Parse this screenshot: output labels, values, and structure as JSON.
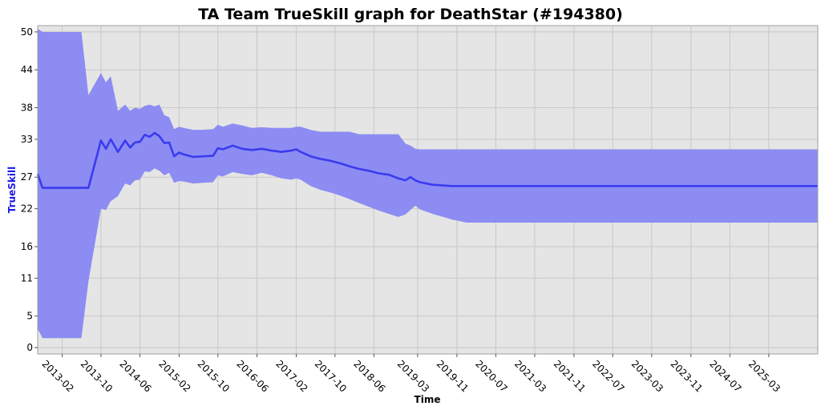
{
  "chart_data": {
    "type": "line",
    "title": "TA Team TrueSkill graph for DeathStar (#194380)",
    "xlabel": "Time",
    "ylabel": "TrueSkill",
    "x_ticks": [
      "2013-02",
      "2013-10",
      "2014-06",
      "2015-02",
      "2015-10",
      "2016-06",
      "2017-02",
      "2017-10",
      "2018-06",
      "2019-03",
      "2019-11",
      "2020-07",
      "2021-03",
      "2021-11",
      "2022-07",
      "2023-03",
      "2023-11",
      "2024-07",
      "2025-03"
    ],
    "y_ticks": [
      0,
      5,
      11,
      16,
      22,
      27,
      33,
      38,
      44,
      50
    ],
    "x_range": [
      "2012-09",
      "2026-01"
    ],
    "ylim": [
      -1,
      51
    ],
    "grid": true,
    "legend": "none",
    "colors": {
      "line": "#3b3bf0",
      "band": "#8c8cf3",
      "plot_bg": "#e5e5e5",
      "grid": "#c8c8c8"
    },
    "series": [
      {
        "x": [
          "2012-09-01",
          "2012-10-01",
          "2013-06-01",
          "2013-07-15",
          "2013-10-01",
          "2013-11-01",
          "2013-12-01",
          "2014-01-15",
          "2014-03-01",
          "2014-04-01",
          "2014-05-01",
          "2014-06-01",
          "2014-07-01",
          "2014-08-01",
          "2014-09-01",
          "2014-10-01",
          "2014-11-01",
          "2014-12-01",
          "2015-01-01",
          "2015-02-01",
          "2015-03-01",
          "2015-05-01",
          "2015-07-01",
          "2015-09-01",
          "2015-10-01",
          "2015-11-01",
          "2016-01-01",
          "2016-03-01",
          "2016-05-01",
          "2016-07-01",
          "2016-09-01",
          "2016-11-01",
          "2017-01-01",
          "2017-02-01",
          "2017-03-01",
          "2017-05-01",
          "2017-07-01",
          "2017-09-01",
          "2017-11-01",
          "2018-01-01",
          "2018-03-01",
          "2018-05-01",
          "2018-07-01",
          "2018-09-01",
          "2018-11-01",
          "2018-12-15",
          "2019-01-15",
          "2019-02-15",
          "2019-03-15",
          "2019-06-01",
          "2019-10-01",
          "2020-01-01",
          "2025-12-31"
        ],
        "mean": [
          27.5,
          25.3,
          25.3,
          25.3,
          32.8,
          31.5,
          33.0,
          31.0,
          32.8,
          31.7,
          32.5,
          32.6,
          33.7,
          33.4,
          34.0,
          33.5,
          32.4,
          32.5,
          30.3,
          30.9,
          30.6,
          30.2,
          30.3,
          30.4,
          31.6,
          31.4,
          32.0,
          31.5,
          31.3,
          31.5,
          31.2,
          31.0,
          31.2,
          31.4,
          31.0,
          30.3,
          29.9,
          29.6,
          29.2,
          28.7,
          28.3,
          28.0,
          27.6,
          27.4,
          26.8,
          26.5,
          27.0,
          26.5,
          26.2,
          25.8,
          25.6,
          25.6,
          25.6
        ],
        "upper": [
          50.5,
          50.0,
          50.0,
          40.0,
          43.5,
          42.0,
          43.0,
          37.5,
          38.5,
          37.5,
          38.0,
          37.8,
          38.3,
          38.5,
          38.2,
          38.5,
          36.8,
          36.5,
          34.6,
          35.0,
          34.8,
          34.5,
          34.5,
          34.6,
          35.3,
          35.0,
          35.5,
          35.2,
          34.8,
          34.9,
          34.8,
          34.8,
          34.8,
          35.0,
          35.0,
          34.5,
          34.2,
          34.2,
          34.2,
          34.2,
          33.8,
          33.8,
          33.8,
          33.8,
          33.8,
          32.3,
          32.0,
          31.5,
          31.4,
          31.4,
          31.4,
          31.4,
          31.4
        ],
        "lower": [
          3.0,
          1.5,
          1.5,
          10.5,
          22.0,
          21.8,
          23.2,
          24.0,
          26.0,
          25.7,
          26.5,
          26.6,
          27.9,
          27.8,
          28.4,
          28.0,
          27.3,
          27.7,
          26.1,
          26.4,
          26.3,
          26.0,
          26.1,
          26.2,
          27.3,
          27.1,
          27.8,
          27.5,
          27.3,
          27.7,
          27.3,
          26.8,
          26.6,
          26.8,
          26.6,
          25.6,
          25.0,
          24.6,
          24.1,
          23.5,
          22.9,
          22.3,
          21.7,
          21.2,
          20.7,
          21.1,
          21.8,
          22.5,
          21.9,
          21.2,
          20.3,
          19.8,
          19.8
        ]
      }
    ]
  }
}
